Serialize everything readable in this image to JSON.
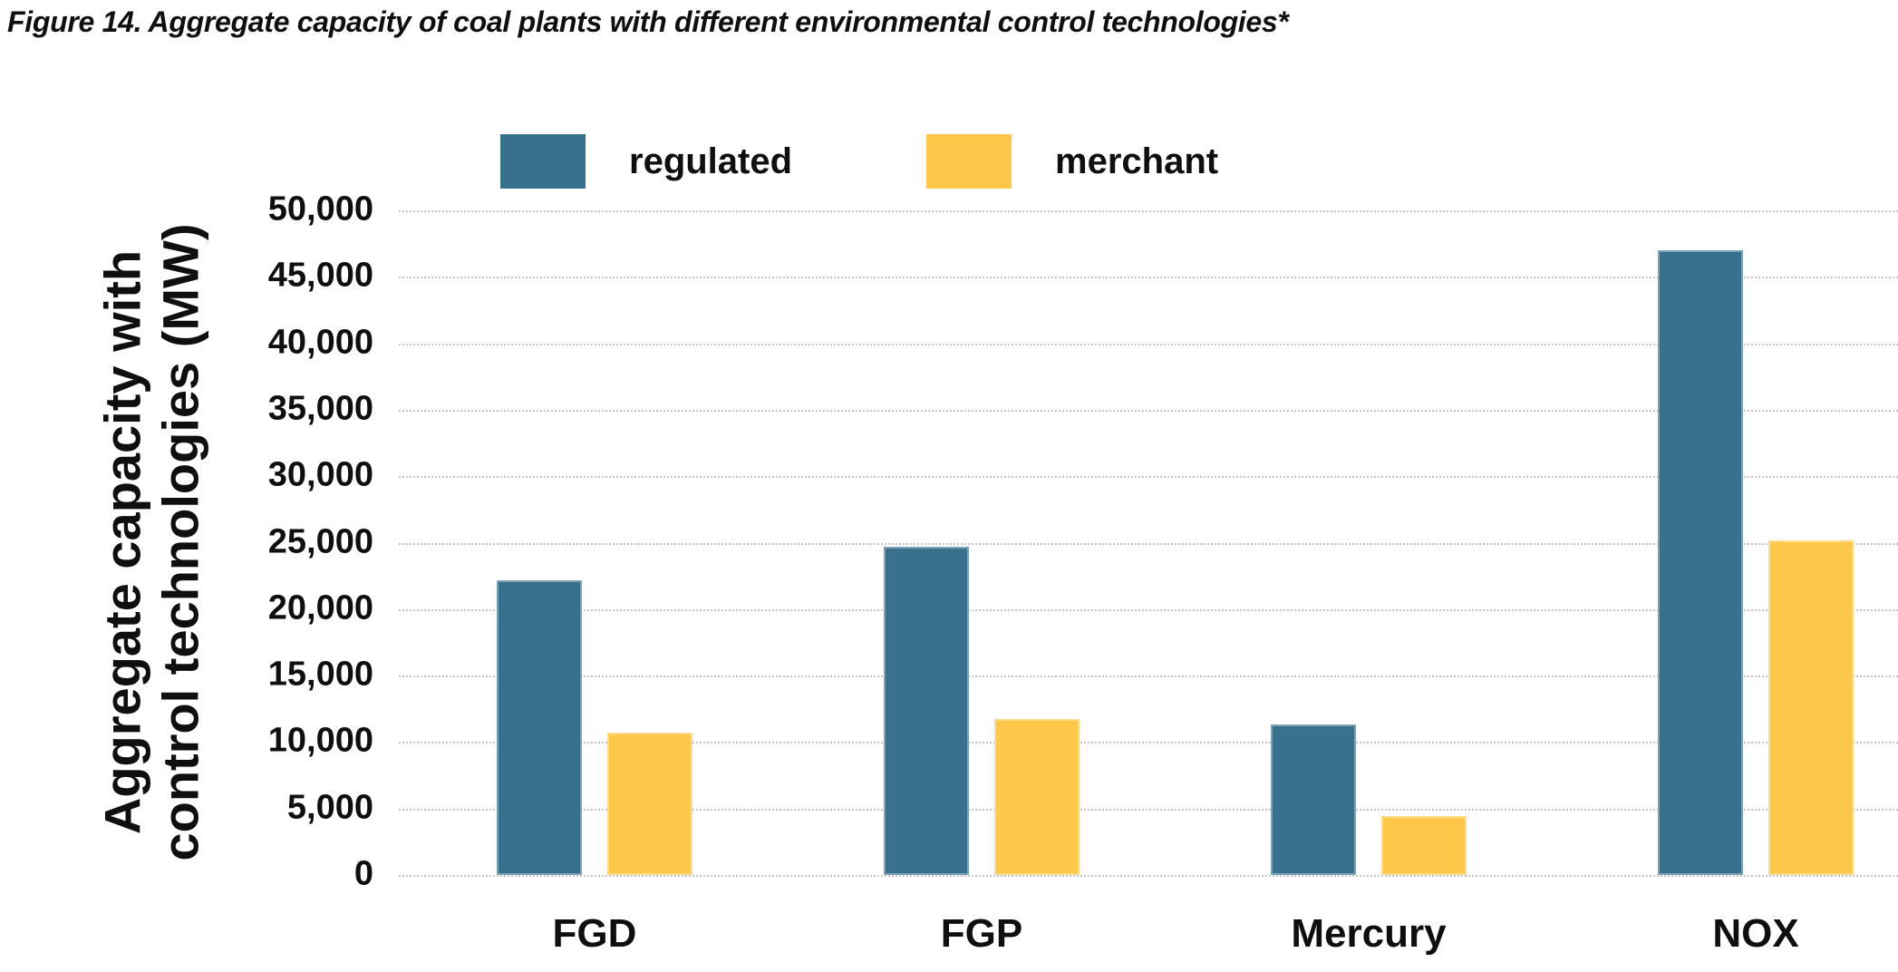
{
  "chart_data": {
    "type": "bar",
    "title": "Figure 14. Aggregate capacity of coal plants with different environmental control technologies*",
    "categories": [
      "FGD",
      "FGP",
      "Mercury",
      "NOX"
    ],
    "series": [
      {
        "name": "regulated",
        "color": "#38718E",
        "values": [
          22200,
          24700,
          11300,
          47000
        ]
      },
      {
        "name": "merchant",
        "color": "#FDC84A",
        "values": [
          10700,
          11700,
          4400,
          25200
        ]
      }
    ],
    "ylabel": "Aggregate capacity with control technologies (MW)",
    "ylabel_lines": [
      "Aggregate capacity with",
      "control technologies (MW)"
    ],
    "xlabel": "",
    "ylim": [
      0,
      50000
    ],
    "ytick_step": 5000,
    "ytick_labels": [
      "0",
      "5,000",
      "10,000",
      "15,000",
      "20,000",
      "25,000",
      "30,000",
      "35,000",
      "40,000",
      "45,000",
      "50,000"
    ],
    "grid": "horizontal-dotted",
    "legend_position": "top"
  },
  "colors": {
    "regulated": "#38718E",
    "merchant": "#FDC84A",
    "gridline": "#C6C6C6",
    "text": "#0F0F0F",
    "background": "#FFFFFF"
  }
}
